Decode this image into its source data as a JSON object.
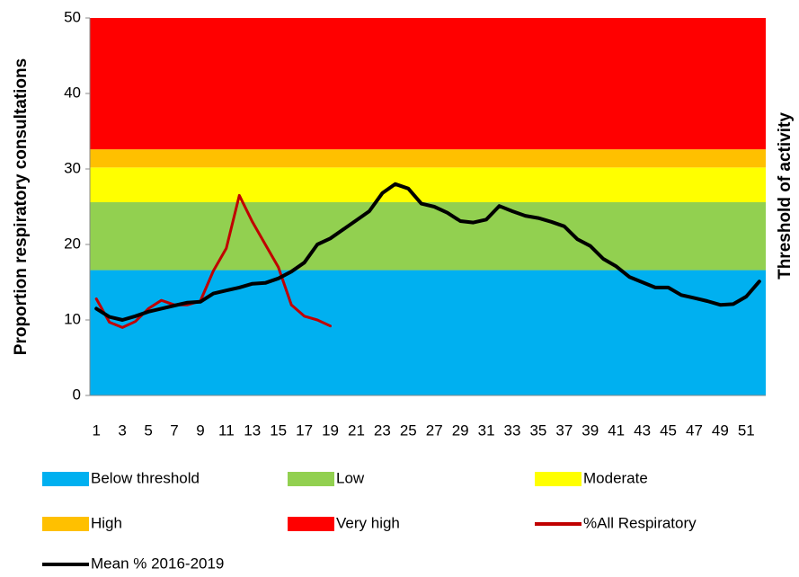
{
  "chart_data": {
    "type": "line",
    "y_label": "Proportion respiratory consultations",
    "y2_label": "Threshold of activity",
    "categories": [
      "1",
      null,
      "3",
      null,
      "5",
      null,
      "7",
      null,
      "9",
      null,
      "11",
      null,
      "13",
      null,
      "15",
      null,
      "17",
      null,
      "19",
      null,
      "21",
      null,
      "23",
      null,
      "25",
      null,
      "27",
      null,
      "29",
      null,
      "31",
      null,
      "33",
      null,
      "35",
      null,
      "37",
      null,
      "39",
      null,
      "41",
      null,
      "43",
      null,
      "45",
      null,
      "47",
      null,
      "49",
      null,
      "51",
      null
    ],
    "ylim": [
      0,
      50
    ],
    "yticks": [
      0,
      10,
      20,
      30,
      40,
      50
    ],
    "bands": [
      {
        "name": "Below threshold",
        "color": "#00b0f0",
        "from": 0,
        "to": 16.6
      },
      {
        "name": "Low",
        "color": "#92d050",
        "from": 16.6,
        "to": 25.6
      },
      {
        "name": "Moderate",
        "color": "#ffff00",
        "from": 25.6,
        "to": 30.2
      },
      {
        "name": "High",
        "color": "#ffc000",
        "from": 30.2,
        "to": 32.6
      },
      {
        "name": "Very high",
        "color": "#ff0000",
        "from": 32.6,
        "to": 50
      }
    ],
    "series": [
      {
        "name": "%All Respiratory",
        "color": "#c00000",
        "values": [
          12.8,
          9.7,
          9.0,
          9.8,
          11.5,
          12.6,
          12.0,
          12.0,
          12.5,
          16.5,
          19.5,
          26.5,
          23.0,
          20.0,
          17.0,
          12.0,
          10.5,
          10.0,
          9.2,
          null,
          null,
          null,
          null,
          null,
          null,
          null,
          null,
          null,
          null,
          null,
          null,
          null,
          null,
          null,
          null,
          null,
          null,
          null,
          null,
          null,
          null,
          null,
          null,
          null,
          null,
          null,
          null,
          null,
          null,
          null,
          null,
          null
        ]
      },
      {
        "name": "Mean % 2016-2019",
        "color": "#000000",
        "values": [
          11.5,
          10.4,
          10.0,
          10.5,
          11.1,
          11.5,
          11.9,
          12.3,
          12.4,
          13.5,
          13.9,
          14.3,
          14.8,
          14.9,
          15.5,
          16.4,
          17.6,
          20.0,
          20.8,
          22.0,
          23.2,
          24.4,
          26.8,
          28.0,
          27.4,
          25.4,
          25.0,
          24.2,
          23.1,
          22.9,
          23.3,
          25.1,
          24.4,
          23.8,
          23.5,
          23.0,
          22.4,
          20.7,
          19.8,
          18.1,
          17.1,
          15.7,
          15.0,
          14.3,
          14.3,
          13.3,
          12.9,
          12.5,
          12.0,
          12.1,
          13.1,
          15.1
        ]
      }
    ]
  }
}
